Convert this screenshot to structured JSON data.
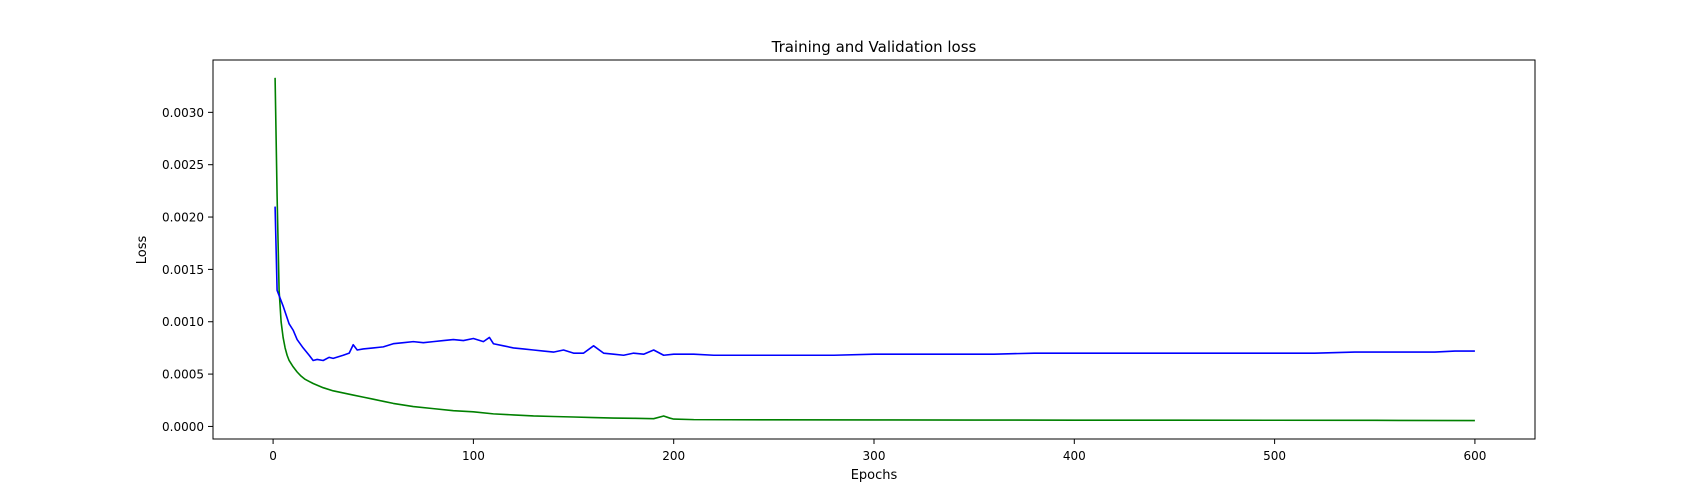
{
  "chart_data": {
    "type": "line",
    "title": "Training and Validation loss",
    "xlabel": "Epochs",
    "ylabel": "Loss",
    "xlim": [
      -30,
      630
    ],
    "ylim": [
      -0.00012,
      0.0035
    ],
    "x_ticks": [
      0,
      100,
      200,
      300,
      400,
      500,
      600
    ],
    "x_tick_labels": [
      "0",
      "100",
      "200",
      "300",
      "400",
      "500",
      "600"
    ],
    "y_ticks": [
      0.0,
      0.0005,
      0.001,
      0.0015,
      0.002,
      0.0025,
      0.003
    ],
    "y_tick_labels": [
      "0.0000",
      "0.0005",
      "0.0010",
      "0.0015",
      "0.0020",
      "0.0025",
      "0.0030"
    ],
    "grid": false,
    "legend": "none",
    "series": [
      {
        "color": "#008000",
        "x": [
          1,
          2,
          3,
          4,
          5,
          6,
          7,
          8,
          10,
          12,
          14,
          16,
          18,
          20,
          25,
          30,
          35,
          40,
          45,
          50,
          55,
          60,
          70,
          80,
          90,
          100,
          110,
          120,
          130,
          140,
          150,
          160,
          170,
          180,
          190,
          195,
          198,
          200,
          210,
          250,
          300,
          350,
          400,
          450,
          500,
          550,
          600
        ],
        "y": [
          0.00333,
          0.0022,
          0.0013,
          0.001,
          0.00085,
          0.00075,
          0.00068,
          0.00063,
          0.00057,
          0.00052,
          0.00048,
          0.00045,
          0.00043,
          0.00041,
          0.00037,
          0.00034,
          0.00032,
          0.0003,
          0.00028,
          0.00026,
          0.00024,
          0.00022,
          0.00019,
          0.00017,
          0.00015,
          0.00014,
          0.00012,
          0.00011,
          0.0001,
          9.5e-05,
          9e-05,
          8.5e-05,
          8e-05,
          7.8e-05,
          7.4e-05,
          0.0001,
          8e-05,
          7e-05,
          6.5e-05,
          6.3e-05,
          6.2e-05,
          6.1e-05,
          6e-05,
          6e-05,
          5.9e-05,
          5.8e-05,
          5.6e-05
        ]
      },
      {
        "color": "#0000ff",
        "x": [
          1,
          2,
          3,
          5,
          8,
          10,
          12,
          15,
          18,
          20,
          22,
          25,
          28,
          30,
          35,
          38,
          40,
          42,
          45,
          50,
          55,
          60,
          65,
          70,
          75,
          80,
          85,
          90,
          95,
          100,
          105,
          108,
          110,
          115,
          120,
          125,
          130,
          135,
          140,
          145,
          150,
          155,
          160,
          165,
          170,
          175,
          180,
          185,
          190,
          195,
          200,
          210,
          220,
          230,
          240,
          250,
          260,
          270,
          280,
          300,
          320,
          340,
          360,
          380,
          400,
          420,
          440,
          460,
          480,
          500,
          520,
          540,
          560,
          580,
          590,
          600
        ],
        "y": [
          0.0021,
          0.0013,
          0.00125,
          0.00115,
          0.00098,
          0.00092,
          0.00083,
          0.00075,
          0.00068,
          0.00063,
          0.00064,
          0.00063,
          0.00066,
          0.00065,
          0.00068,
          0.0007,
          0.00078,
          0.00073,
          0.00074,
          0.00075,
          0.00076,
          0.00079,
          0.0008,
          0.00081,
          0.0008,
          0.00081,
          0.00082,
          0.00083,
          0.00082,
          0.00084,
          0.00081,
          0.00085,
          0.00079,
          0.00077,
          0.00075,
          0.00074,
          0.00073,
          0.00072,
          0.00071,
          0.00073,
          0.0007,
          0.0007,
          0.00077,
          0.0007,
          0.00069,
          0.00068,
          0.0007,
          0.00069,
          0.00073,
          0.00068,
          0.00069,
          0.00069,
          0.00068,
          0.00068,
          0.00068,
          0.00068,
          0.00068,
          0.00068,
          0.00068,
          0.00069,
          0.00069,
          0.00069,
          0.00069,
          0.0007,
          0.0007,
          0.0007,
          0.0007,
          0.0007,
          0.0007,
          0.0007,
          0.0007,
          0.00071,
          0.00071,
          0.00071,
          0.00072,
          0.00072
        ]
      }
    ]
  }
}
